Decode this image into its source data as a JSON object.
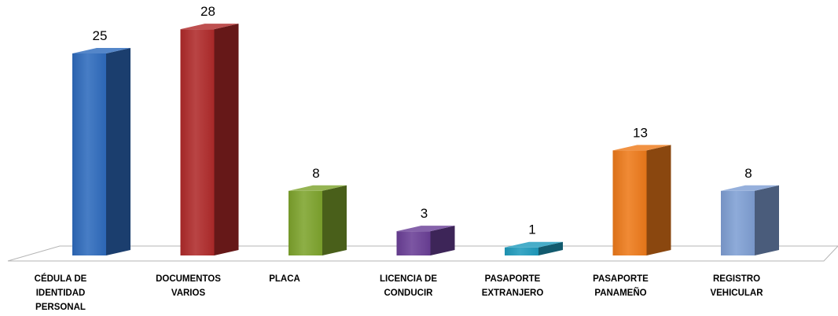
{
  "chart_data": {
    "type": "bar",
    "style": "3d-column",
    "title": "",
    "xlabel": "",
    "ylabel": "",
    "ylim": [
      0,
      30
    ],
    "grid": false,
    "legend": "none",
    "categories": [
      [
        "CÉDULA DE",
        "IDENTIDAD",
        "PERSONAL"
      ],
      [
        "DOCUMENTOS",
        "VARIOS"
      ],
      [
        "PLACA"
      ],
      [
        "LICENCIA DE",
        "CONDUCIR"
      ],
      [
        "PASAPORTE",
        "EXTRANJERO"
      ],
      [
        "PASAPORTE",
        "PANAMEÑO"
      ],
      [
        "REGISTRO",
        "VEHICULAR"
      ]
    ],
    "values": [
      25,
      28,
      8,
      3,
      1,
      13,
      8
    ],
    "colors": [
      "#2e6bbd",
      "#b02a2a",
      "#7ea42d",
      "#6a3f97",
      "#1f9bbd",
      "#ee7a1a",
      "#7f9fd4"
    ]
  }
}
